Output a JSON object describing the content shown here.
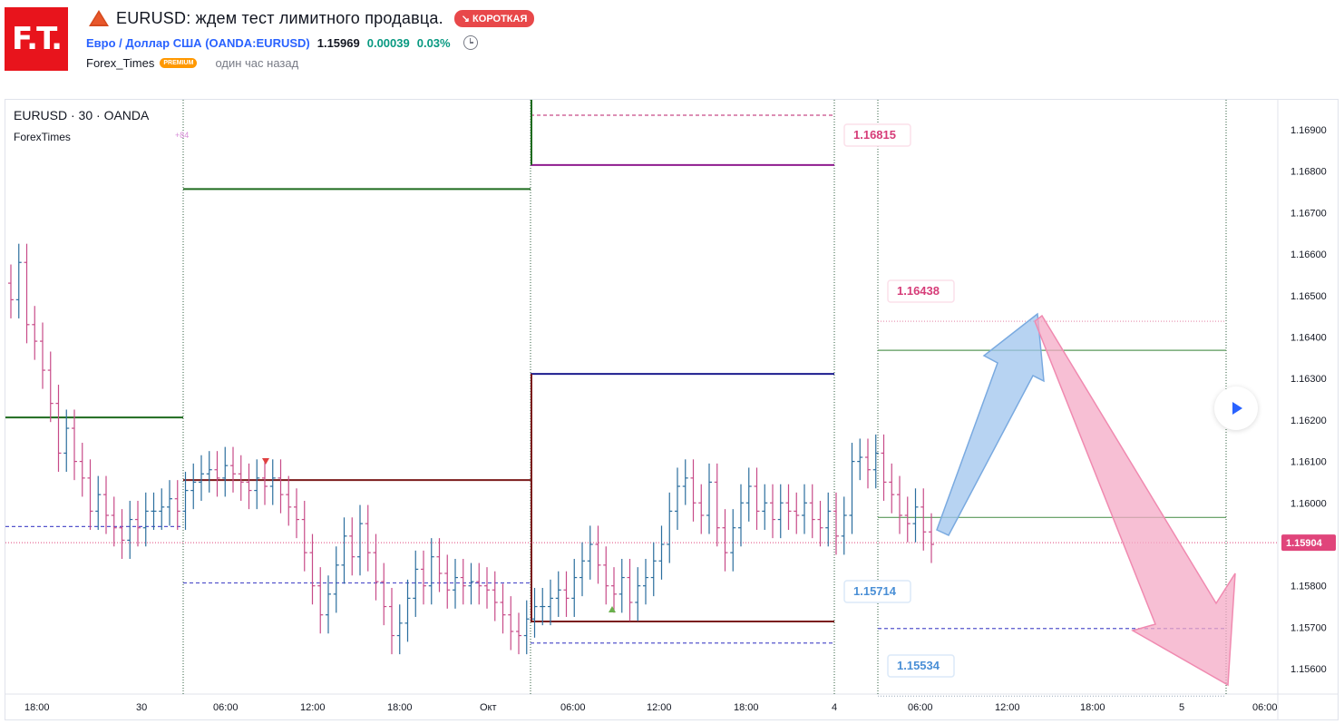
{
  "header": {
    "logo_text": "F.T.",
    "title_icon": "warning-triangle-icon",
    "title": "EURUSD: ждем тест лимитного продавца.",
    "badge_label": "↘ КОРОТКАЯ",
    "symbol_name": "Евро / Доллар США",
    "symbol_ticker": "(OANDA:EURUSD)",
    "price": "1.15969",
    "change": "0.00039",
    "change_pct": "0.03%",
    "alarm_icon": "alarm-clock-icon",
    "author": "Forex_Times",
    "premium_label": "PREMIUM",
    "time_ago": "один час назад"
  },
  "chart_legend": {
    "symbol_line": "EURUSD · 30 · OANDA",
    "indicator": "ForexTimes",
    "indicator_badge": "+84"
  },
  "colors": {
    "up": "#2b6e9e",
    "down": "#c74b88",
    "green_level": "#1e6b1e",
    "maroon_level": "#7b1b1b",
    "navy_level": "#1b1b8e",
    "purple_level": "#8e1b8e",
    "blue_dashed": "#5555cc",
    "pink_label": "#d63c78",
    "blue_label": "#4a8fd6",
    "price_tag": "#e0457b",
    "arrow_blue": "#9fc4ee",
    "arrow_pink": "#f4aac5"
  },
  "chart_data": {
    "type": "candlestick",
    "symbol": "EURUSD",
    "timeframe": "30",
    "y_ticks": [
      "1.16900",
      "1.16800",
      "1.16700",
      "1.16600",
      "1.16500",
      "1.16400",
      "1.16300",
      "1.16200",
      "1.16100",
      "1.16000",
      "1.15904",
      "1.15800",
      "1.15700",
      "1.15600"
    ],
    "ylim": [
      1.1553,
      1.1694
    ],
    "x_ticks": [
      "18:00",
      "30",
      "06:00",
      "12:00",
      "18:00",
      "Окт",
      "06:00",
      "12:00",
      "18:00",
      "4",
      "06:00",
      "12:00",
      "18:00",
      "5",
      "06:00"
    ],
    "current_price": "1.15904",
    "price_labels": [
      {
        "text": "1.16815",
        "value": 1.16815
      },
      {
        "text": "1.16438",
        "value": 1.16438
      },
      {
        "text": "1.15714",
        "value": 1.15714
      },
      {
        "text": "1.15534",
        "value": 1.15534
      }
    ],
    "closes": [
      1.1649,
      1.1658,
      1.1643,
      1.1639,
      1.1632,
      1.1624,
      1.1612,
      1.1618,
      1.161,
      1.1606,
      1.1598,
      1.1602,
      1.1597,
      1.1594,
      1.1591,
      1.1596,
      1.1594,
      1.1598,
      1.1598,
      1.1599,
      1.1601,
      1.1598,
      1.1603,
      1.1605,
      1.1607,
      1.1608,
      1.1606,
      1.1609,
      1.1607,
      1.1605,
      1.1603,
      1.1606,
      1.1604,
      1.1606,
      1.1602,
      1.1599,
      1.1596,
      1.1588,
      1.158,
      1.1573,
      1.1578,
      1.1585,
      1.1592,
      1.1587,
      1.1595,
      1.1588,
      1.1581,
      1.1575,
      1.1568,
      1.1571,
      1.1577,
      1.1584,
      1.158,
      1.1587,
      1.1583,
      1.1579,
      1.1582,
      1.158,
      1.1581,
      1.158,
      1.1579,
      1.1576,
      1.1573,
      1.1569,
      1.1568,
      1.1572,
      1.1575,
      1.1575,
      1.1577,
      1.1579,
      1.1577,
      1.1582,
      1.1586,
      1.159,
      1.1585,
      1.158,
      1.1578,
      1.1582,
      1.1576,
      1.158,
      1.1582,
      1.1586,
      1.159,
      1.1598,
      1.1604,
      1.1606,
      1.16,
      1.1597,
      1.1605,
      1.1594,
      1.1588,
      1.1594,
      1.16,
      1.1604,
      1.1598,
      1.16,
      1.1596,
      1.16,
      1.1598,
      1.1597,
      1.16,
      1.1596,
      1.1594,
      1.1598,
      1.1592,
      1.1597,
      1.161,
      1.1611,
      1.1608,
      1.1612,
      1.1605,
      1.1602,
      1.1597,
      1.1595,
      1.1599,
      1.1593,
      1.159
    ]
  }
}
